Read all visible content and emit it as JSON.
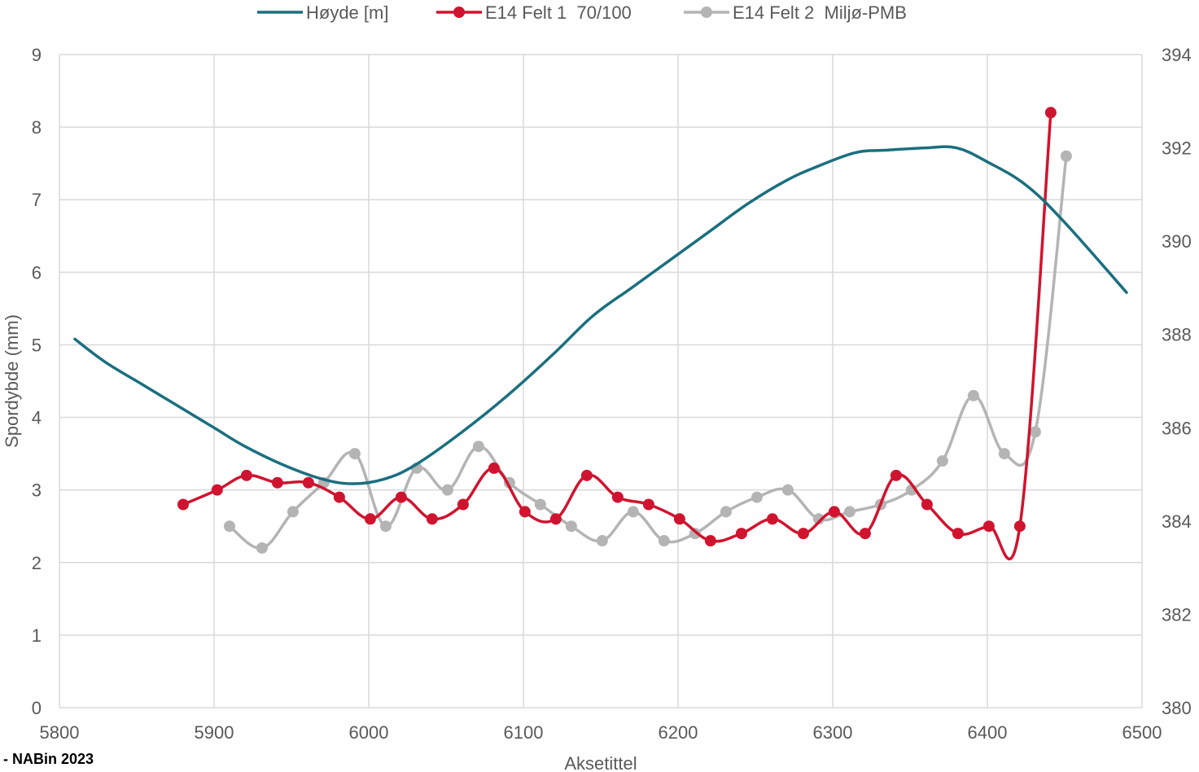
{
  "footer_text": "- NABin 2023",
  "chart_data": {
    "type": "line",
    "xlabel": "Aksetittel",
    "ylabel": "Spordybde (mm)",
    "xlim": [
      5800,
      6500
    ],
    "ylim": [
      0,
      9
    ],
    "y2lim": [
      380,
      394
    ],
    "x_ticks": [
      5800,
      5900,
      6000,
      6100,
      6200,
      6300,
      6400,
      6500
    ],
    "y_ticks": [
      0,
      1,
      2,
      3,
      4,
      5,
      6,
      7,
      8,
      9
    ],
    "y2_ticks": [
      380,
      382,
      384,
      386,
      388,
      390,
      392,
      394
    ],
    "grid": true,
    "legend_position": "top",
    "series": [
      {
        "name": "Høyde [m]",
        "axis": "right",
        "color": "#1a6f7f",
        "markers": false,
        "x": [
          5810,
          5830,
          5855,
          5875,
          5900,
          5920,
          5945,
          5970,
          5990,
          6010,
          6030,
          6060,
          6090,
          6120,
          6145,
          6170,
          6195,
          6220,
          6245,
          6270,
          6290,
          6315,
          6335,
          6360,
          6380,
          6400,
          6425,
          6450,
          6490
        ],
        "y": [
          387.9,
          387.4,
          386.9,
          386.5,
          386.0,
          385.6,
          385.2,
          384.9,
          384.8,
          384.9,
          385.2,
          385.9,
          386.7,
          387.6,
          388.4,
          389.0,
          389.6,
          390.2,
          390.8,
          391.3,
          391.6,
          391.9,
          391.95,
          392.0,
          392.0,
          391.7,
          391.2,
          390.4,
          388.9
        ]
      },
      {
        "name": "E14 Felt 1  70/100",
        "axis": "left",
        "color": "#d0142f",
        "markers": true,
        "x": [
          5880,
          5902,
          5921,
          5941,
          5961,
          5981,
          6001,
          6021,
          6041,
          6061,
          6081,
          6101,
          6121,
          6141,
          6161,
          6181,
          6201,
          6221,
          6241,
          6261,
          6281,
          6301,
          6321,
          6341,
          6361,
          6381,
          6401,
          6421,
          6441
        ],
        "y": [
          2.8,
          3.0,
          3.2,
          3.1,
          3.1,
          2.9,
          2.6,
          2.9,
          2.6,
          2.8,
          3.3,
          2.7,
          2.6,
          3.2,
          2.9,
          2.8,
          2.6,
          2.3,
          2.4,
          2.6,
          2.4,
          2.7,
          2.4,
          3.2,
          2.8,
          2.4,
          2.5,
          2.5,
          8.2
        ]
      },
      {
        "name": "E14 Felt 2  Miljø-PMB",
        "axis": "left",
        "color": "#b4b4b4",
        "markers": true,
        "x": [
          5910,
          5931,
          5951,
          5971,
          5991,
          6011,
          6031,
          6051,
          6071,
          6091,
          6111,
          6131,
          6151,
          6171,
          6191,
          6211,
          6231,
          6251,
          6271,
          6291,
          6311,
          6331,
          6351,
          6371,
          6391,
          6411,
          6431,
          6451
        ],
        "y": [
          2.5,
          2.2,
          2.7,
          3.1,
          3.5,
          2.5,
          3.3,
          3.0,
          3.6,
          3.1,
          2.8,
          2.5,
          2.3,
          2.7,
          2.3,
          2.4,
          2.7,
          2.9,
          3.0,
          2.6,
          2.7,
          2.8,
          3.0,
          3.4,
          4.3,
          3.5,
          3.8,
          7.6
        ]
      }
    ]
  }
}
